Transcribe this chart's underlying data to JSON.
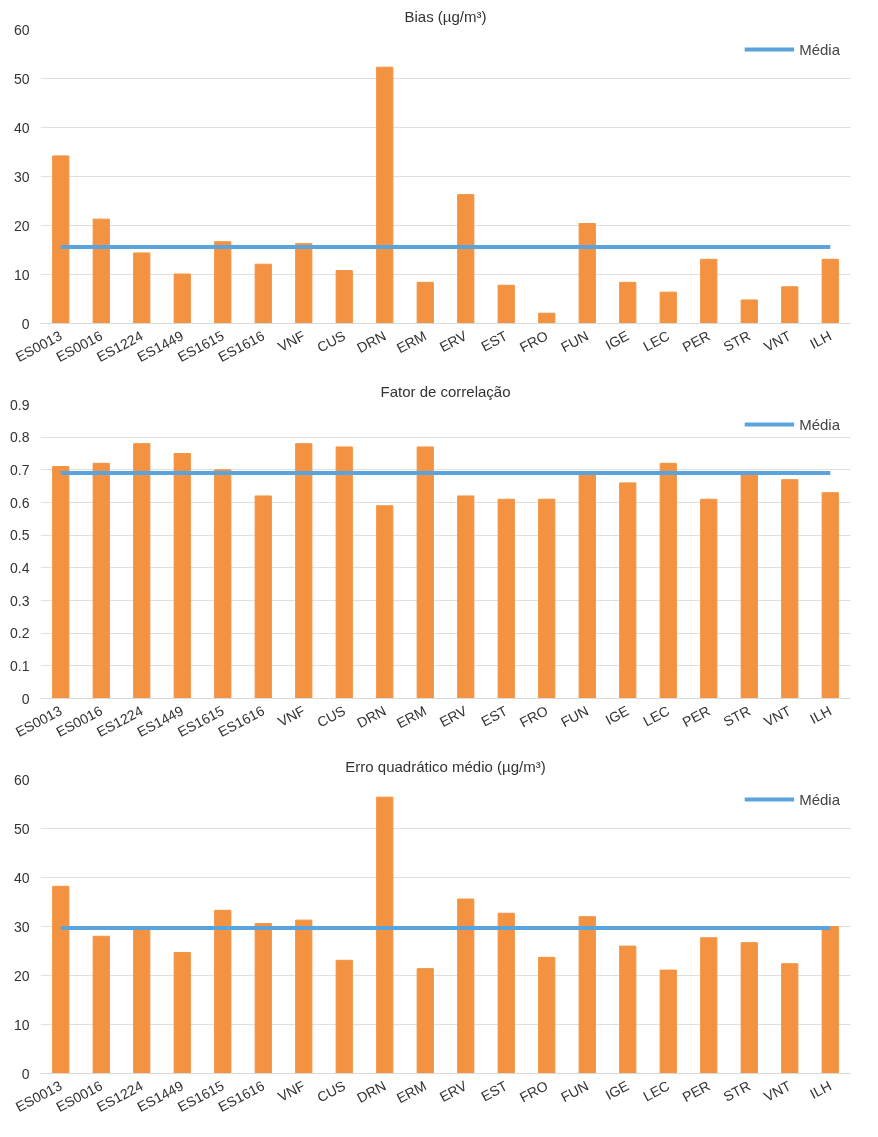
{
  "chart_data": [
    {
      "type": "bar",
      "title": "Bias (µg/m³)",
      "categories": [
        "ES0013",
        "ES0016",
        "ES1224",
        "ES1449",
        "ES1615",
        "ES1616",
        "VNF",
        "CUS",
        "DRN",
        "ERM",
        "ERV",
        "EST",
        "FRO",
        "FUN",
        "IGE",
        "LEC",
        "PER",
        "STR",
        "VNT",
        "ILH"
      ],
      "series": [
        {
          "color": "#f39240",
          "values": [
            34.2,
            21.3,
            14.4,
            10.1,
            16.7,
            12.1,
            16.3,
            10.8,
            52.3,
            8.4,
            26.3,
            7.8,
            2.1,
            20.4,
            8.4,
            6.4,
            13.1,
            4.8,
            7.5,
            13.1
          ]
        },
        {
          "type": "line",
          "name": "Média",
          "color": "#5ba3dc",
          "values": [
            15.6,
            15.6,
            15.6,
            15.6,
            15.6,
            15.6,
            15.6,
            15.6,
            15.6,
            15.6,
            15.6,
            15.6,
            15.6,
            15.6,
            15.6,
            15.6,
            15.6,
            15.6,
            15.6,
            15.6
          ]
        }
      ],
      "ylim": [
        0,
        60
      ],
      "yticks": [
        0,
        10,
        20,
        30,
        40,
        50,
        60
      ],
      "grid": "y",
      "legend": "top right"
    },
    {
      "type": "bar",
      "title": "Fator de correlação",
      "categories": [
        "ES0013",
        "ES0016",
        "ES1224",
        "ES1449",
        "ES1615",
        "ES1616",
        "VNF",
        "CUS",
        "DRN",
        "ERM",
        "ERV",
        "EST",
        "FRO",
        "FUN",
        "IGE",
        "LEC",
        "PER",
        "STR",
        "VNT",
        "ILH"
      ],
      "series": [
        {
          "color": "#f39240",
          "values": [
            0.71,
            0.72,
            0.78,
            0.75,
            0.7,
            0.62,
            0.78,
            0.77,
            0.59,
            0.77,
            0.62,
            0.61,
            0.61,
            0.69,
            0.66,
            0.72,
            0.61,
            0.69,
            0.67,
            0.63
          ]
        },
        {
          "type": "line",
          "name": "Média",
          "color": "#5ba3dc",
          "values": [
            0.69,
            0.69,
            0.69,
            0.69,
            0.69,
            0.69,
            0.69,
            0.69,
            0.69,
            0.69,
            0.69,
            0.69,
            0.69,
            0.69,
            0.69,
            0.69,
            0.69,
            0.69,
            0.69,
            0.69
          ]
        }
      ],
      "ylim": [
        0,
        0.9
      ],
      "yticks": [
        0,
        {
          "value": 0.1,
          "label": "0.1"
        },
        {
          "value": 0.2,
          "label": "0.2"
        },
        {
          "value": 0.3,
          "label": "0.3"
        },
        {
          "value": 0.4,
          "label": "0.4"
        },
        {
          "value": 0.5,
          "label": "0.5"
        },
        {
          "value": 0.6,
          "label": "0.6"
        },
        {
          "value": 0.7,
          "label": "0.7"
        },
        {
          "value": 0.8,
          "label": "0.8"
        },
        {
          "value": 0.9,
          "label": "0.9"
        }
      ],
      "grid": "y",
      "legend": "top right"
    },
    {
      "type": "bar",
      "title": "Erro quadrático médio (µg/m³)",
      "categories": [
        "ES0013",
        "ES0016",
        "ES1224",
        "ES1449",
        "ES1615",
        "ES1616",
        "VNF",
        "CUS",
        "DRN",
        "ERM",
        "ERV",
        "EST",
        "FRO",
        "FUN",
        "IGE",
        "LEC",
        "PER",
        "STR",
        "VNT",
        "ILH"
      ],
      "series": [
        {
          "color": "#f39240",
          "values": [
            38.2,
            28,
            29.6,
            24.7,
            33.3,
            30.6,
            31.3,
            23.1,
            56.4,
            21.4,
            35.6,
            32.7,
            23.7,
            32,
            26,
            21.1,
            27.7,
            26.7,
            22.4,
            30
          ]
        },
        {
          "type": "line",
          "name": "Média",
          "color": "#5ba3dc",
          "values": [
            29.7,
            29.7,
            29.7,
            29.7,
            29.7,
            29.7,
            29.7,
            29.7,
            29.7,
            29.7,
            29.7,
            29.7,
            29.7,
            29.7,
            29.7,
            29.7,
            29.7,
            29.7,
            29.7,
            29.7
          ]
        }
      ],
      "ylim": [
        0,
        60
      ],
      "yticks": [
        0,
        10,
        20,
        30,
        40,
        50,
        60
      ],
      "grid": "y",
      "legend": "top right"
    }
  ]
}
